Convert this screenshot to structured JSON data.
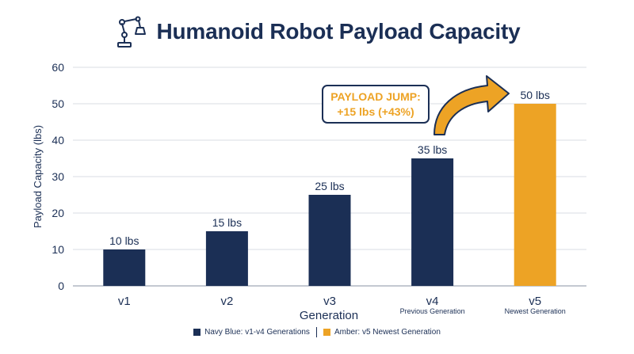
{
  "chart_data": {
    "type": "bar",
    "title": "Humanoid Robot Payload Capacity",
    "xlabel": "Generation",
    "ylabel": "Payload Capacity (lbs)",
    "ylim": [
      0,
      60
    ],
    "yticks": [
      0,
      10,
      20,
      30,
      40,
      50,
      60
    ],
    "grid": true,
    "categories": [
      "v1",
      "v2",
      "v3",
      "v4",
      "v5"
    ],
    "category_sublabels": [
      "",
      "",
      "",
      "Previous Generation",
      "Newest Generation"
    ],
    "values": [
      10,
      15,
      25,
      35,
      50
    ],
    "value_labels": [
      "10 lbs",
      "15 lbs",
      "25 lbs",
      "35 lbs",
      "50 lbs"
    ],
    "bar_colors": [
      "#1b2f55",
      "#1b2f55",
      "#1b2f55",
      "#1b2f55",
      "#eda325"
    ],
    "annotation": {
      "line1": "PAYLOAD JUMP:",
      "line2": "+15 lbs (+43%)",
      "from": "v4",
      "to": "v5"
    },
    "legend": {
      "placement": "bottom-center",
      "entries": [
        {
          "label": "Navy Blue: v1-v4 Generations",
          "color": "#1b2f55"
        },
        {
          "label": "Amber: v5 Newest Generation",
          "color": "#eda325"
        }
      ]
    }
  },
  "colors": {
    "navy": "#1b2f55",
    "amber": "#eda325",
    "grid": "#d9dde3"
  },
  "icons": {
    "title": "robot-arm-icon"
  }
}
